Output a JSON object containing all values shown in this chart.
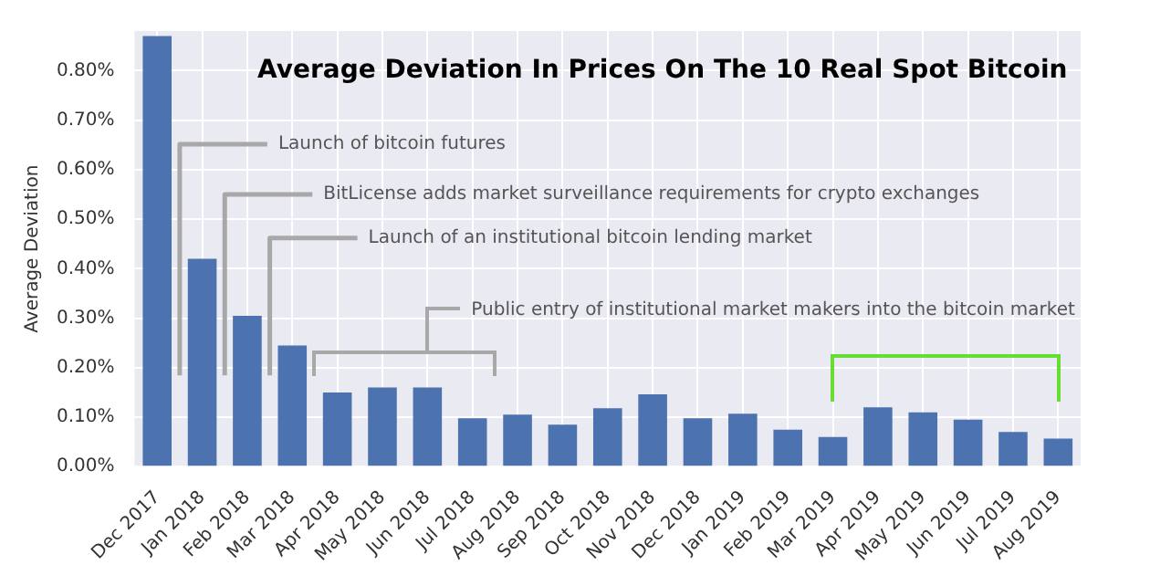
{
  "chart_data": {
    "type": "bar",
    "title": "Average Deviation In Prices On The 10 Real Spot Bitcoin",
    "ylabel": "Average Deviation",
    "categories": [
      "Dec 2017",
      "Jan 2018",
      "Feb 2018",
      "Mar 2018",
      "Apr 2018",
      "May 2018",
      "Jun 2018",
      "Jul 2018",
      "Aug 2018",
      "Sep 2018",
      "Oct 2018",
      "Nov 2018",
      "Dec 2018",
      "Jan 2019",
      "Feb 2019",
      "Mar 2019",
      "Apr 2019",
      "May 2019",
      "Jun 2019",
      "Jul 2019",
      "Aug 2019"
    ],
    "values": [
      0.87,
      0.42,
      0.305,
      0.245,
      0.15,
      0.16,
      0.16,
      0.098,
      0.105,
      0.085,
      0.118,
      0.146,
      0.098,
      0.107,
      0.075,
      0.06,
      0.12,
      0.11,
      0.095,
      0.07,
      0.057
    ],
    "color": "#4c72b0",
    "ylim": [
      0,
      0.88
    ],
    "yticks": [
      {
        "value": 0,
        "label": "0.00%"
      },
      {
        "value": 0.1,
        "label": "0.10%"
      },
      {
        "value": 0.2,
        "label": "0.20%"
      },
      {
        "value": 0.3,
        "label": "0.30%"
      },
      {
        "value": 0.4,
        "label": "0.40%"
      },
      {
        "value": 0.5,
        "label": "0.50%"
      },
      {
        "value": 0.6,
        "label": "0.60%"
      },
      {
        "value": 0.7,
        "label": "0.70%"
      },
      {
        "value": 0.8,
        "label": "0.80%"
      }
    ],
    "grid": true,
    "annotations": [
      "Launch of bitcoin futures",
      "BitLicense adds market surveillance requirements for crypto exchanges",
      "Launch of an institutional bitcoin lending market",
      "Public entry of institutional market makers into the bitcoin market"
    ]
  }
}
